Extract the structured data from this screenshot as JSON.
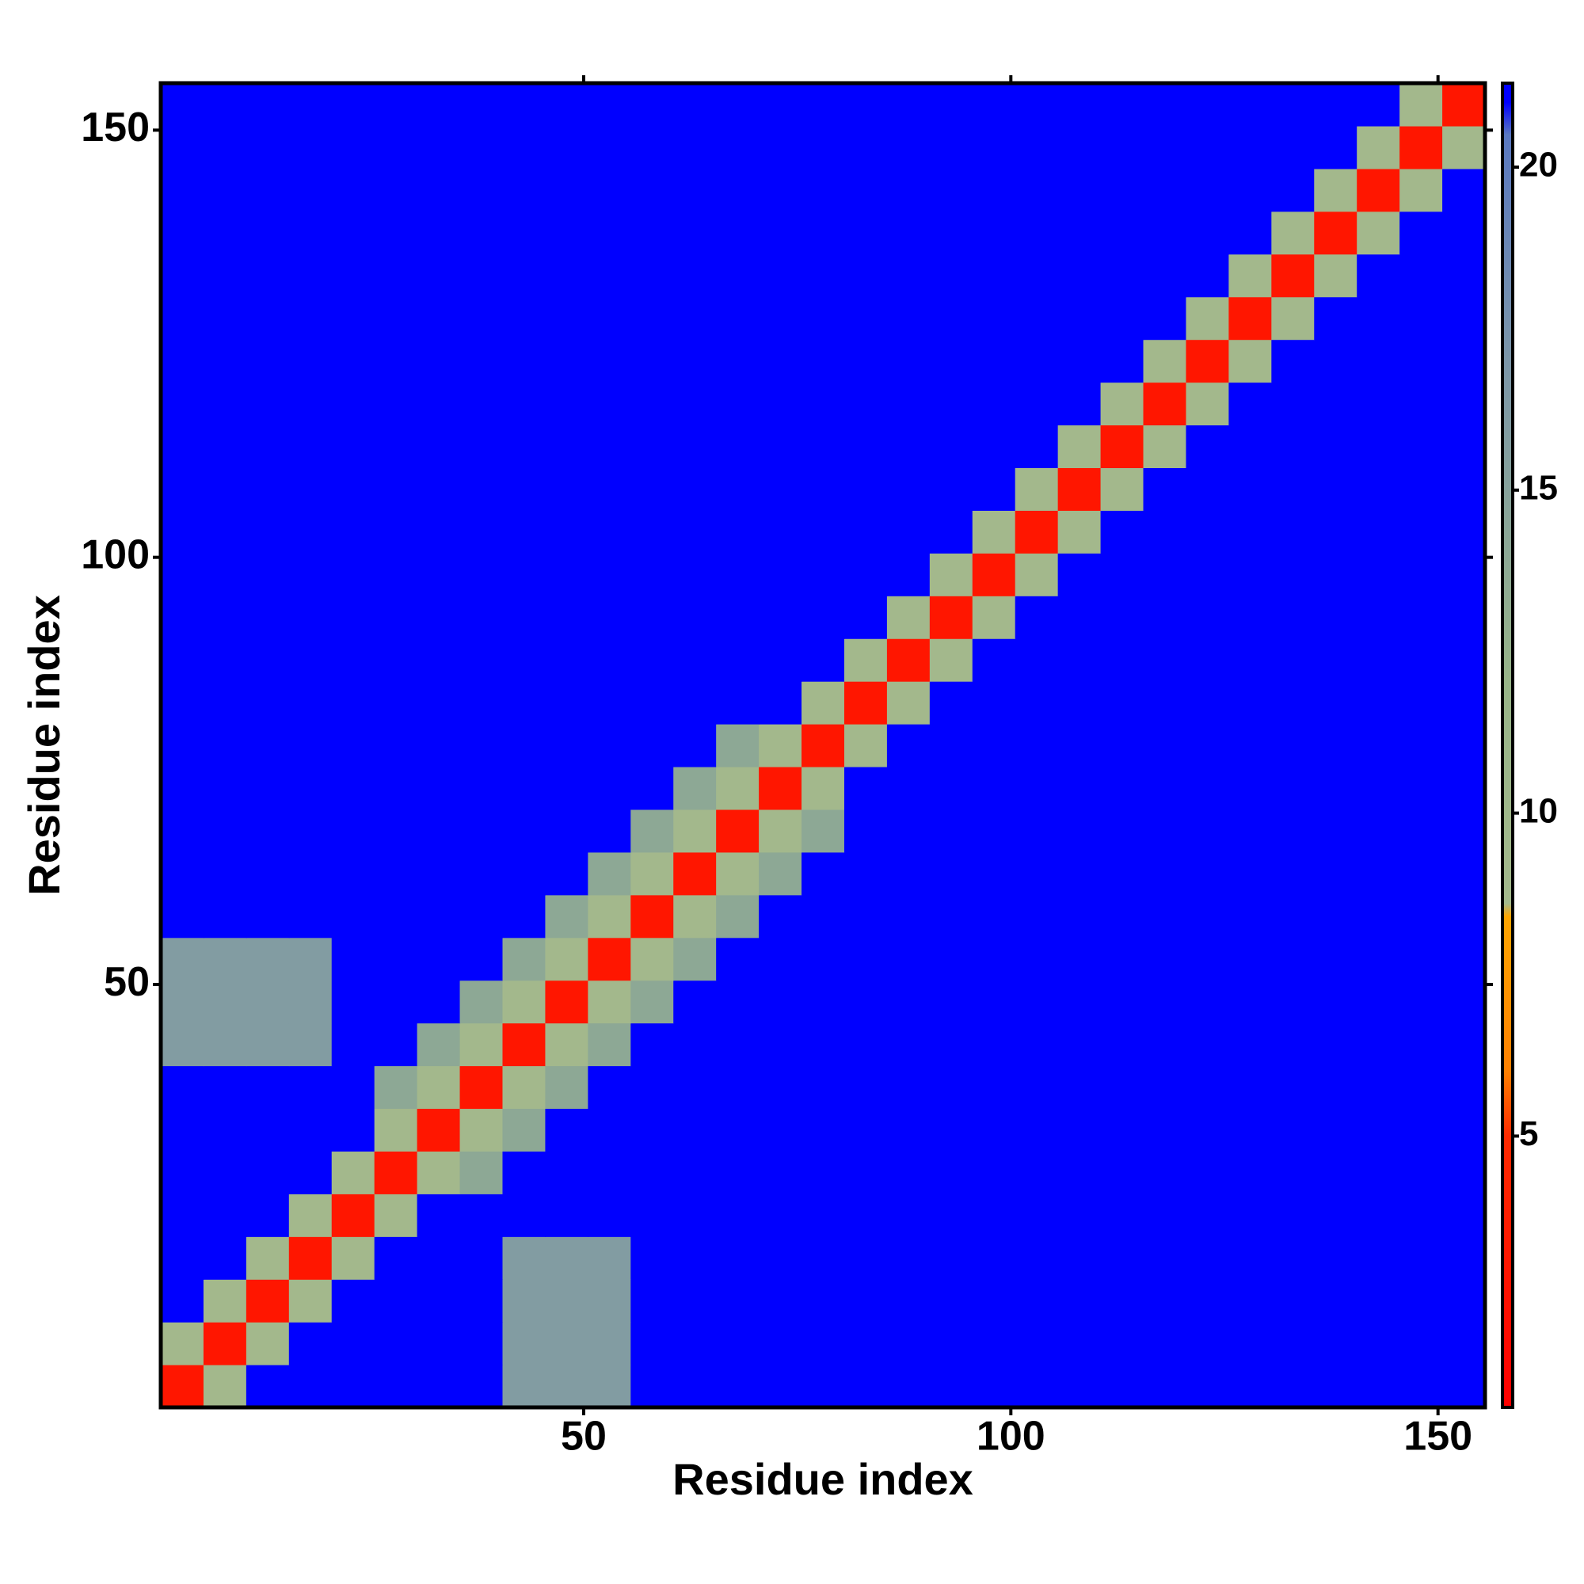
{
  "chart_data": {
    "type": "heatmap",
    "xlabel": "Residue index",
    "ylabel": "Residue index",
    "xlim": [
      0.5,
      155.5
    ],
    "ylim": [
      0.5,
      155.5
    ],
    "xticks": [
      50,
      100,
      150
    ],
    "yticks": [
      50,
      100,
      150
    ],
    "x": [
      3,
      8,
      13,
      18,
      23,
      28,
      33,
      38,
      43,
      48,
      53,
      58,
      63,
      68,
      73,
      78,
      83,
      88,
      93,
      98,
      103,
      108,
      113,
      118,
      123,
      128,
      133,
      138,
      143,
      148,
      153
    ],
    "y": [
      3,
      8,
      13,
      18,
      23,
      28,
      33,
      38,
      43,
      48,
      53,
      58,
      63,
      68,
      73,
      78,
      83,
      88,
      93,
      98,
      103,
      108,
      113,
      118,
      123,
      128,
      133,
      138,
      143,
      148,
      153
    ],
    "cell_size": 5,
    "z": [
      [
        3,
        9,
        21,
        21,
        21,
        21,
        21,
        21,
        16,
        16,
        16,
        21,
        21,
        21,
        21,
        21,
        21,
        21,
        21,
        21,
        21,
        21,
        21,
        21,
        21,
        21,
        21,
        21,
        21,
        21,
        21
      ],
      [
        9,
        3,
        9,
        21,
        21,
        21,
        21,
        21,
        16,
        16,
        16,
        21,
        21,
        21,
        21,
        21,
        21,
        21,
        21,
        21,
        21,
        21,
        21,
        21,
        21,
        21,
        21,
        21,
        21,
        21,
        21
      ],
      [
        21,
        9,
        3,
        9,
        21,
        21,
        21,
        21,
        16,
        16,
        16,
        21,
        21,
        21,
        21,
        21,
        21,
        21,
        21,
        21,
        21,
        21,
        21,
        21,
        21,
        21,
        21,
        21,
        21,
        21,
        21
      ],
      [
        21,
        21,
        9,
        3,
        9,
        21,
        21,
        21,
        16,
        16,
        16,
        21,
        21,
        21,
        21,
        21,
        21,
        21,
        21,
        21,
        21,
        21,
        21,
        21,
        21,
        21,
        21,
        21,
        21,
        21,
        21
      ],
      [
        21,
        21,
        21,
        9,
        3,
        9,
        21,
        21,
        21,
        21,
        21,
        21,
        21,
        21,
        21,
        21,
        21,
        21,
        21,
        21,
        21,
        21,
        21,
        21,
        21,
        21,
        21,
        21,
        21,
        21,
        21
      ],
      [
        21,
        21,
        21,
        21,
        9,
        3,
        9,
        14,
        21,
        21,
        21,
        21,
        21,
        21,
        21,
        21,
        21,
        21,
        21,
        21,
        21,
        21,
        21,
        21,
        21,
        21,
        21,
        21,
        21,
        21,
        21
      ],
      [
        21,
        21,
        21,
        21,
        21,
        9,
        3,
        9,
        14,
        21,
        21,
        21,
        21,
        21,
        21,
        21,
        21,
        21,
        21,
        21,
        21,
        21,
        21,
        21,
        21,
        21,
        21,
        21,
        21,
        21,
        21
      ],
      [
        21,
        21,
        21,
        21,
        21,
        14,
        9,
        3,
        9,
        14,
        21,
        21,
        21,
        21,
        21,
        21,
        21,
        21,
        21,
        21,
        21,
        21,
        21,
        21,
        21,
        21,
        21,
        21,
        21,
        21,
        21
      ],
      [
        16,
        16,
        16,
        16,
        21,
        21,
        14,
        9,
        3,
        9,
        14,
        21,
        21,
        21,
        21,
        21,
        21,
        21,
        21,
        21,
        21,
        21,
        21,
        21,
        21,
        21,
        21,
        21,
        21,
        21,
        21
      ],
      [
        16,
        16,
        16,
        16,
        21,
        21,
        21,
        14,
        9,
        3,
        9,
        14,
        21,
        21,
        21,
        21,
        21,
        21,
        21,
        21,
        21,
        21,
        21,
        21,
        21,
        21,
        21,
        21,
        21,
        21,
        21
      ],
      [
        16,
        16,
        16,
        16,
        21,
        21,
        21,
        21,
        14,
        9,
        3,
        9,
        14,
        21,
        21,
        21,
        21,
        21,
        21,
        21,
        21,
        21,
        21,
        21,
        21,
        21,
        21,
        21,
        21,
        21,
        21
      ],
      [
        21,
        21,
        21,
        21,
        21,
        21,
        21,
        21,
        21,
        14,
        9,
        3,
        9,
        14,
        21,
        21,
        21,
        21,
        21,
        21,
        21,
        21,
        21,
        21,
        21,
        21,
        21,
        21,
        21,
        21,
        21
      ],
      [
        21,
        21,
        21,
        21,
        21,
        21,
        21,
        21,
        21,
        21,
        14,
        9,
        3,
        9,
        14,
        21,
        21,
        21,
        21,
        21,
        21,
        21,
        21,
        21,
        21,
        21,
        21,
        21,
        21,
        21,
        21
      ],
      [
        21,
        21,
        21,
        21,
        21,
        21,
        21,
        21,
        21,
        21,
        21,
        14,
        9,
        3,
        9,
        14,
        21,
        21,
        21,
        21,
        21,
        21,
        21,
        21,
        21,
        21,
        21,
        21,
        21,
        21,
        21
      ],
      [
        21,
        21,
        21,
        21,
        21,
        21,
        21,
        21,
        21,
        21,
        21,
        21,
        14,
        9,
        3,
        9,
        21,
        21,
        21,
        21,
        21,
        21,
        21,
        21,
        21,
        21,
        21,
        21,
        21,
        21,
        21
      ],
      [
        21,
        21,
        21,
        21,
        21,
        21,
        21,
        21,
        21,
        21,
        21,
        21,
        21,
        14,
        9,
        3,
        9,
        21,
        21,
        21,
        21,
        21,
        21,
        21,
        21,
        21,
        21,
        21,
        21,
        21,
        21
      ],
      [
        21,
        21,
        21,
        21,
        21,
        21,
        21,
        21,
        21,
        21,
        21,
        21,
        21,
        21,
        21,
        9,
        3,
        9,
        21,
        21,
        21,
        21,
        21,
        21,
        21,
        21,
        21,
        21,
        21,
        21,
        21
      ],
      [
        21,
        21,
        21,
        21,
        21,
        21,
        21,
        21,
        21,
        21,
        21,
        21,
        21,
        21,
        21,
        21,
        9,
        3,
        9,
        21,
        21,
        21,
        21,
        21,
        21,
        21,
        21,
        21,
        21,
        21,
        21
      ],
      [
        21,
        21,
        21,
        21,
        21,
        21,
        21,
        21,
        21,
        21,
        21,
        21,
        21,
        21,
        21,
        21,
        21,
        9,
        3,
        9,
        21,
        21,
        21,
        21,
        21,
        21,
        21,
        21,
        21,
        21,
        21
      ],
      [
        21,
        21,
        21,
        21,
        21,
        21,
        21,
        21,
        21,
        21,
        21,
        21,
        21,
        21,
        21,
        21,
        21,
        21,
        9,
        3,
        9,
        21,
        21,
        21,
        21,
        21,
        21,
        21,
        21,
        21,
        21
      ],
      [
        21,
        21,
        21,
        21,
        21,
        21,
        21,
        21,
        21,
        21,
        21,
        21,
        21,
        21,
        21,
        21,
        21,
        21,
        21,
        9,
        3,
        9,
        21,
        21,
        21,
        21,
        21,
        21,
        21,
        21,
        21
      ],
      [
        21,
        21,
        21,
        21,
        21,
        21,
        21,
        21,
        21,
        21,
        21,
        21,
        21,
        21,
        21,
        21,
        21,
        21,
        21,
        21,
        9,
        3,
        9,
        21,
        21,
        21,
        21,
        21,
        21,
        21,
        21
      ],
      [
        21,
        21,
        21,
        21,
        21,
        21,
        21,
        21,
        21,
        21,
        21,
        21,
        21,
        21,
        21,
        21,
        21,
        21,
        21,
        21,
        21,
        9,
        3,
        9,
        21,
        21,
        21,
        21,
        21,
        21,
        21
      ],
      [
        21,
        21,
        21,
        21,
        21,
        21,
        21,
        21,
        21,
        21,
        21,
        21,
        21,
        21,
        21,
        21,
        21,
        21,
        21,
        21,
        21,
        21,
        9,
        3,
        9,
        21,
        21,
        21,
        21,
        21,
        21
      ],
      [
        21,
        21,
        21,
        21,
        21,
        21,
        21,
        21,
        21,
        21,
        21,
        21,
        21,
        21,
        21,
        21,
        21,
        21,
        21,
        21,
        21,
        21,
        21,
        9,
        3,
        9,
        21,
        21,
        21,
        21,
        21
      ],
      [
        21,
        21,
        21,
        21,
        21,
        21,
        21,
        21,
        21,
        21,
        21,
        21,
        21,
        21,
        21,
        21,
        21,
        21,
        21,
        21,
        21,
        21,
        21,
        21,
        9,
        3,
        9,
        21,
        21,
        21,
        21
      ],
      [
        21,
        21,
        21,
        21,
        21,
        21,
        21,
        21,
        21,
        21,
        21,
        21,
        21,
        21,
        21,
        21,
        21,
        21,
        21,
        21,
        21,
        21,
        21,
        21,
        21,
        9,
        3,
        9,
        21,
        21,
        21
      ],
      [
        21,
        21,
        21,
        21,
        21,
        21,
        21,
        21,
        21,
        21,
        21,
        21,
        21,
        21,
        21,
        21,
        21,
        21,
        21,
        21,
        21,
        21,
        21,
        21,
        21,
        21,
        9,
        3,
        9,
        21,
        21
      ],
      [
        21,
        21,
        21,
        21,
        21,
        21,
        21,
        21,
        21,
        21,
        21,
        21,
        21,
        21,
        21,
        21,
        21,
        21,
        21,
        21,
        21,
        21,
        21,
        21,
        21,
        21,
        21,
        9,
        3,
        9,
        21
      ],
      [
        21,
        21,
        21,
        21,
        21,
        21,
        21,
        21,
        21,
        21,
        21,
        21,
        21,
        21,
        21,
        21,
        21,
        21,
        21,
        21,
        21,
        21,
        21,
        21,
        21,
        21,
        21,
        21,
        9,
        3,
        9
      ],
      [
        21,
        21,
        21,
        21,
        21,
        21,
        21,
        21,
        21,
        21,
        21,
        21,
        21,
        21,
        21,
        21,
        21,
        21,
        21,
        21,
        21,
        21,
        21,
        21,
        21,
        21,
        21,
        21,
        21,
        9,
        3
      ]
    ],
    "clim": [
      0.8,
      21.3
    ],
    "cticks": [
      5,
      10,
      15,
      20
    ],
    "colorscale": [
      [
        0.8,
        "#ff0000"
      ],
      [
        5,
        "#ff2a00"
      ],
      [
        6,
        "#ff8000"
      ],
      [
        8.4,
        "#ffa500"
      ],
      [
        8.6,
        "#a4b98c"
      ],
      [
        12,
        "#98b488"
      ],
      [
        17,
        "#7c96a8"
      ],
      [
        20.5,
        "#5a78c0"
      ],
      [
        21,
        "#0000ff"
      ],
      [
        21.3,
        "#0000ff"
      ]
    ]
  }
}
